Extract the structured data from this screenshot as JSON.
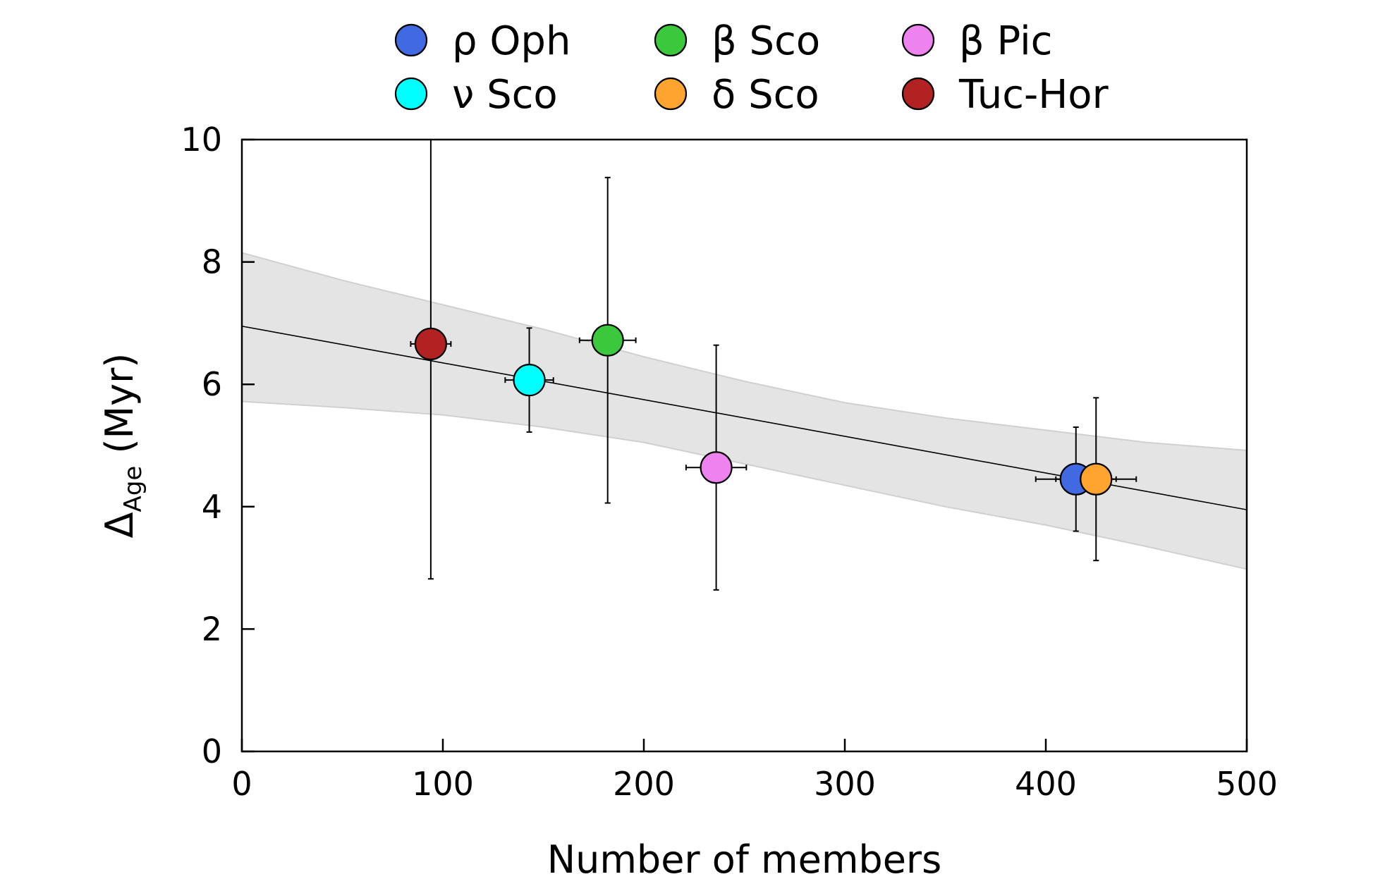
{
  "chart_data": {
    "type": "scatter",
    "xlabel": "Number of members",
    "ylabel_main": "Δ",
    "ylabel_sub": "Age",
    "ylabel_unit": " (Myr)",
    "xlim": [
      0,
      500
    ],
    "ylim": [
      0,
      10
    ],
    "xticks": [
      0,
      100,
      200,
      300,
      400,
      500
    ],
    "yticks": [
      0,
      2,
      4,
      6,
      8,
      10
    ],
    "grid": false,
    "legend_position": "top",
    "series": [
      {
        "name": "ρ Oph",
        "color": "#4169e1",
        "x": 415,
        "y": 4.45,
        "xerr": 20,
        "yerr_low": 0.85,
        "yerr_high": 0.85
      },
      {
        "name": "β Sco",
        "color": "#3cc83c",
        "x": 182,
        "y": 6.72,
        "xerr": 14,
        "yerr_low": 2.66,
        "yerr_high": 2.66
      },
      {
        "name": "β Pic",
        "color": "#ee82ee",
        "x": 236,
        "y": 4.64,
        "xerr": 15,
        "yerr_low": 2.0,
        "yerr_high": 2.0
      },
      {
        "name": "ν Sco",
        "color": "#00ffff",
        "x": 143,
        "y": 6.07,
        "xerr": 12,
        "yerr_low": 0.85,
        "yerr_high": 0.85
      },
      {
        "name": "δ Sco",
        "color": "#ffa42e",
        "x": 425,
        "y": 4.45,
        "xerr": 20,
        "yerr_low": 1.33,
        "yerr_high": 1.33
      },
      {
        "name": "Tuc-Hor",
        "color": "#b22222",
        "x": 94,
        "y": 6.66,
        "xerr": 10,
        "yerr_low": 3.84,
        "yerr_high": 3.84
      }
    ],
    "fit_line": {
      "x": [
        0,
        500
      ],
      "y": [
        6.95,
        3.95
      ]
    },
    "confidence_band": {
      "x": [
        0,
        50,
        100,
        150,
        200,
        250,
        300,
        350,
        400,
        450,
        500
      ],
      "upper": [
        8.15,
        7.7,
        7.3,
        6.9,
        6.45,
        6.05,
        5.7,
        5.45,
        5.25,
        5.05,
        4.92
      ],
      "lower": [
        5.72,
        5.62,
        5.5,
        5.3,
        5.05,
        4.7,
        4.35,
        4.0,
        3.7,
        3.35,
        2.98
      ]
    }
  }
}
